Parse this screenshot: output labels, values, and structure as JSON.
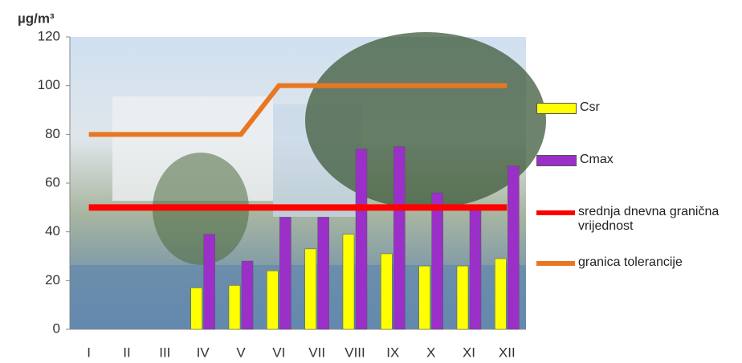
{
  "chart_data": {
    "type": "bar",
    "y_label": "µg/m³",
    "categories": [
      "I",
      "II",
      "III",
      "IV",
      "V",
      "VI",
      "VII",
      "VIII",
      "IX",
      "X",
      "XI",
      "XII"
    ],
    "series": [
      {
        "name": "Csr",
        "color": "#ffff00",
        "values": [
          null,
          null,
          null,
          17,
          18,
          24,
          33,
          39,
          31,
          26,
          26,
          29
        ]
      },
      {
        "name": "Cmax",
        "color": "#9b30c8",
        "values": [
          null,
          null,
          null,
          39,
          28,
          46,
          46,
          74,
          75,
          56,
          50,
          67
        ]
      },
      {
        "name": "srednja dnevna granična vrijednost",
        "color": "#ff0000",
        "type": "line",
        "values": [
          50,
          50,
          50,
          50,
          50,
          50,
          50,
          50,
          50,
          50,
          50,
          50
        ]
      },
      {
        "name": "granica tolerancije",
        "color": "#e87722",
        "type": "line",
        "values": [
          80,
          80,
          80,
          80,
          80,
          100,
          100,
          100,
          100,
          100,
          100,
          100
        ]
      }
    ],
    "ylim": [
      0,
      120
    ],
    "yticks": [
      0,
      20,
      40,
      60,
      80,
      100,
      120
    ]
  }
}
